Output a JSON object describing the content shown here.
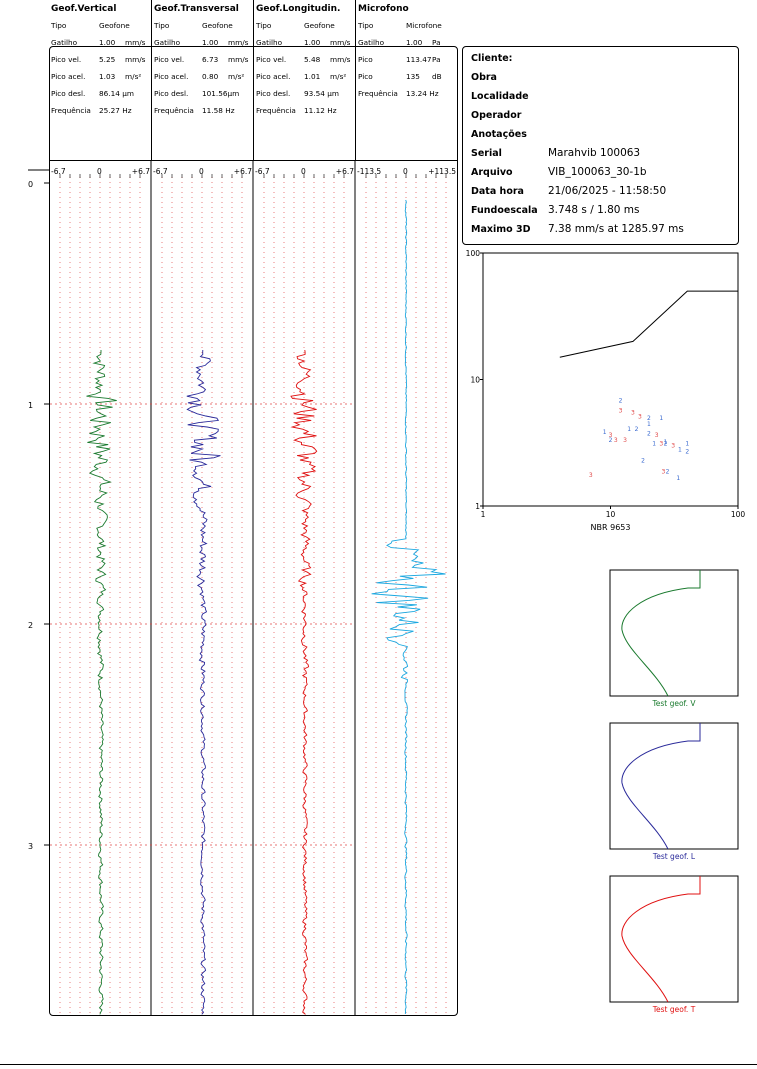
{
  "channels": [
    {
      "title": "Geof.Vertical",
      "rows": [
        [
          "Tipo",
          "Geofone"
        ],
        [
          "Gatilho",
          "1.00",
          "mm/s"
        ],
        [
          "Pico vel.",
          "5.25",
          "mm/s"
        ],
        [
          "Pico acel.",
          "1.03",
          "m/s²"
        ],
        [
          "Pico desl.",
          "86.14 µm"
        ],
        [
          "Frequência",
          "25.27 Hz"
        ]
      ],
      "color": "#1a7a2e",
      "scale_min": "-6.7",
      "scale_zero": "0",
      "scale_max": "+6.7"
    },
    {
      "title": "Geof.Transversal",
      "rows": [
        [
          "Tipo",
          "Geofone"
        ],
        [
          "Gatilho",
          "1.00",
          "mm/s"
        ],
        [
          "Pico vel.",
          "6.73",
          "mm/s"
        ],
        [
          "Pico acel.",
          "0.80",
          "m/s²"
        ],
        [
          "Pico desl.",
          "101.56µm"
        ],
        [
          "Frequência",
          "11.58 Hz"
        ]
      ],
      "color": "#2a2a9a",
      "scale_min": "-6.7",
      "scale_zero": "0",
      "scale_max": "+6.7"
    },
    {
      "title": "Geof.Longitudin.",
      "rows": [
        [
          "Tipo",
          "Geofone"
        ],
        [
          "Gatilho",
          "1.00",
          "mm/s"
        ],
        [
          "Pico vel.",
          "5.48",
          "mm/s"
        ],
        [
          "Pico acel.",
          "1.01",
          "m/s²"
        ],
        [
          "Pico desl.",
          "93.54 µm"
        ],
        [
          "Frequência",
          "11.12 Hz"
        ]
      ],
      "color": "#e01010",
      "scale_min": "-6.7",
      "scale_zero": "0",
      "scale_max": "+6.7"
    },
    {
      "title": "Microfono",
      "rows": [
        [
          "Tipo",
          "Microfone"
        ],
        [
          "Gatilho",
          "1.00",
          "Pa"
        ],
        [
          "Pico",
          "113.47",
          "Pa"
        ],
        [
          "Pico",
          "135",
          "dB"
        ],
        [
          "Frequência",
          "13.24 Hz"
        ]
      ],
      "color": "#1aa7e0",
      "scale_min": "-113.5",
      "scale_zero": "0",
      "scale_max": "+113.5"
    }
  ],
  "info": {
    "cliente_label": "Cliente:",
    "obra_label": "Obra",
    "localidade_label": "Localidade",
    "operador_label": "Operador",
    "anotacoes_label": "Anotações",
    "serial_label": "Serial",
    "serial": "Marahvib 100063",
    "arquivo_label": "Arquivo",
    "arquivo": "VIB_100063_30-1b",
    "datahora_label": "Data hora",
    "datahora": "21/06/2025  -  11:58:50",
    "fundo_label": "Fundoescala",
    "fundo": "3.748 s / 1.80 ms",
    "maximo_label": "Maximo 3D",
    "maximo": "7.38 mm/s at 1285.97 ms"
  },
  "time_axis": {
    "labels": [
      "0",
      "1",
      "2",
      "3"
    ]
  },
  "chart_data": [
    {
      "type": "scatter",
      "title": "NBR 9653",
      "xscale": "log",
      "yscale": "log",
      "xlim": [
        1,
        100
      ],
      "ylim": [
        1,
        100
      ],
      "xticks": [
        "1",
        "10",
        "100"
      ],
      "yticks": [
        "1",
        "10",
        "100"
      ],
      "limit_curve": [
        [
          4,
          15
        ],
        [
          15,
          20
        ],
        [
          40,
          50
        ],
        [
          100,
          50
        ]
      ],
      "series": [
        {
          "name": "1",
          "color": "#3a6ad0",
          "points": [
            [
              9,
              3.7
            ],
            [
              20,
              4.3
            ],
            [
              22,
              3
            ],
            [
              25,
              4.8
            ],
            [
              14,
              3.9
            ],
            [
              27,
              3.1
            ],
            [
              35,
              2.7
            ],
            [
              40,
              3
            ],
            [
              34,
              1.6
            ]
          ]
        },
        {
          "name": "2",
          "color": "#3a6ad0",
          "points": [
            [
              12,
              6.6
            ],
            [
              20,
              4.8
            ],
            [
              16,
              3.9
            ],
            [
              20,
              3.6
            ],
            [
              10,
              3.2
            ],
            [
              27,
              3
            ],
            [
              40,
              2.6
            ],
            [
              18,
              2.2
            ],
            [
              28,
              1.8
            ]
          ]
        },
        {
          "name": "3",
          "color": "#e04848",
          "points": [
            [
              12,
              5.5
            ],
            [
              15,
              5.3
            ],
            [
              17,
              4.9
            ],
            [
              10,
              3.5
            ],
            [
              11,
              3.2
            ],
            [
              13,
              3.2
            ],
            [
              23,
              3.5
            ],
            [
              25,
              3
            ],
            [
              31,
              2.9
            ],
            [
              7,
              1.7
            ],
            [
              26,
              1.8
            ]
          ]
        }
      ]
    },
    {
      "type": "line",
      "title": "Test geof. V",
      "color": "#1a7a2e"
    },
    {
      "type": "line",
      "title": "Test geof. L",
      "color": "#2a2a9a"
    },
    {
      "type": "line",
      "title": "Test geof. T",
      "color": "#e01010"
    }
  ]
}
